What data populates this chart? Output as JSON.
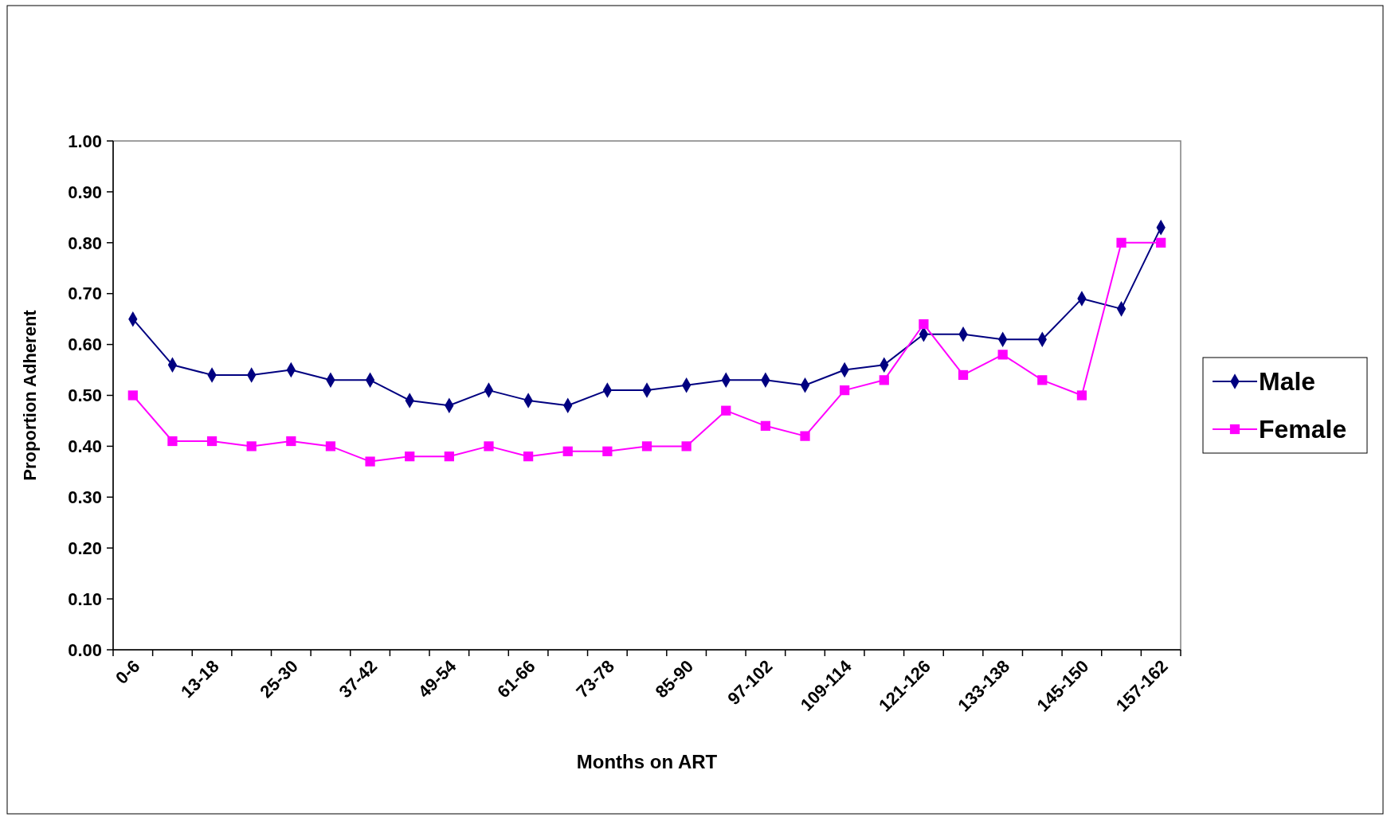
{
  "chart_data": {
    "type": "line",
    "xlabel": "Months on ART",
    "ylabel": "Proportion Adherent",
    "categories": [
      "0-6",
      null,
      "13-18",
      null,
      "25-30",
      null,
      "37-42",
      null,
      "49-54",
      null,
      "61-66",
      null,
      "73-78",
      null,
      "85-90",
      null,
      "97-102",
      null,
      "109-114",
      null,
      "121-126",
      null,
      "133-138",
      null,
      "145-150",
      null,
      "157-162"
    ],
    "series": [
      {
        "name": "Male",
        "color": "#000080",
        "marker": "diamond",
        "values": [
          0.65,
          0.56,
          0.54,
          0.54,
          0.55,
          0.53,
          0.53,
          0.49,
          0.48,
          0.51,
          0.49,
          0.48,
          0.51,
          0.51,
          0.52,
          0.53,
          0.53,
          0.52,
          0.55,
          0.56,
          0.62,
          0.62,
          0.61,
          0.61,
          0.69,
          0.67,
          0.83
        ]
      },
      {
        "name": "Female",
        "color": "#ff00ff",
        "marker": "square",
        "values": [
          0.5,
          0.41,
          0.41,
          0.4,
          0.41,
          0.4,
          0.37,
          0.38,
          0.38,
          0.4,
          0.38,
          0.39,
          0.39,
          0.4,
          0.4,
          0.47,
          0.44,
          0.42,
          0.51,
          0.53,
          0.64,
          0.54,
          0.58,
          0.53,
          0.5,
          0.8,
          0.8
        ]
      }
    ],
    "ylim": [
      0,
      1
    ],
    "yticks": [
      {
        "value": 0,
        "label": "0.00"
      },
      {
        "value": 0.1,
        "label": "0.10"
      },
      {
        "value": 0.2,
        "label": "0.20"
      },
      {
        "value": 0.3,
        "label": "0.30"
      },
      {
        "value": 0.4,
        "label": "0.40"
      },
      {
        "value": 0.5,
        "label": "0.50"
      },
      {
        "value": 0.6,
        "label": "0.60"
      },
      {
        "value": 0.7,
        "label": "0.70"
      },
      {
        "value": 0.8,
        "label": "0.80"
      },
      {
        "value": 0.9,
        "label": "0.90"
      },
      {
        "value": 1,
        "label": "1.00"
      }
    ],
    "grid": false,
    "legend": "right",
    "line_style": "solid"
  }
}
